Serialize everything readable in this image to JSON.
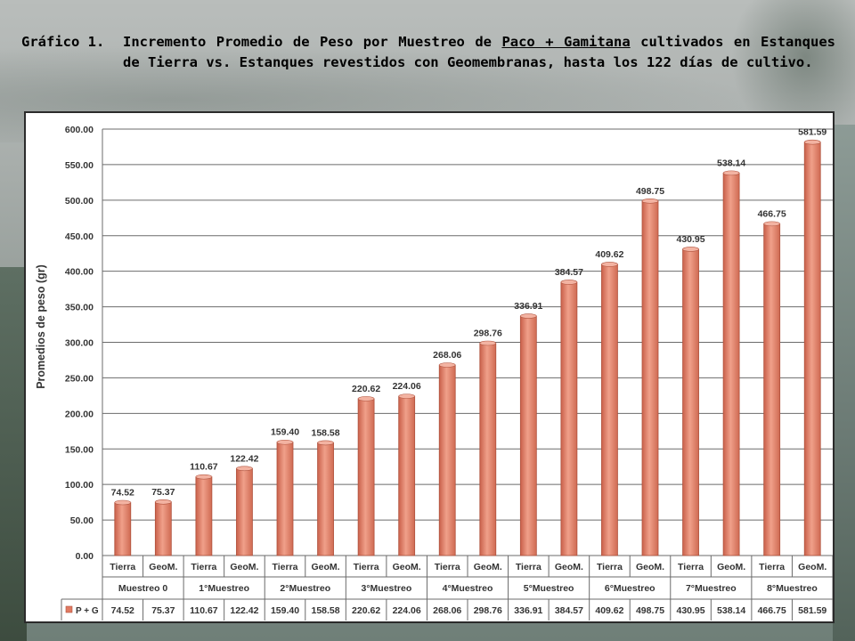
{
  "title": {
    "label": "Gráfico 1.",
    "text_pre": "Incremento Promedio de Peso por Muestreo de ",
    "text_underlined": "Paco + Gamitana",
    "text_post": " cultivados en Estanques de Tierra vs. Estanques revestidos con Geomembranas, hasta los 122 días de cultivo."
  },
  "chart_data": {
    "type": "bar",
    "ylabel": "Promedios de peso (gr)",
    "ylim": [
      0,
      600
    ],
    "ytick_step": 50,
    "grid": true,
    "bar_color": "#e07a62",
    "series": [
      {
        "name": "P + G",
        "values": [
          74.52,
          75.37,
          110.67,
          122.42,
          159.4,
          158.58,
          220.62,
          224.06,
          268.06,
          298.76,
          336.91,
          384.57,
          409.62,
          498.75,
          430.95,
          538.14,
          466.75,
          581.59
        ],
        "labels": [
          "74.52",
          "75.37",
          "110.67",
          "122.42",
          "159.40",
          "158.58",
          "220.62",
          "224.06",
          "268.06",
          "298.76",
          "336.91",
          "384.57",
          "409.62",
          "498.75",
          "430.95",
          "538.14",
          "466.75",
          "581.59"
        ]
      }
    ],
    "categories": [
      "Tierra",
      "GeoM.",
      "Tierra",
      "GeoM.",
      "Tierra",
      "GeoM.",
      "Tierra",
      "GeoM.",
      "Tierra",
      "GeoM.",
      "Tierra",
      "GeoM.",
      "Tierra",
      "GeoM.",
      "Tierra",
      "GeoM.",
      "Tierra",
      "GeoM."
    ],
    "groups": [
      "Muestreo 0",
      "1°Muestreo",
      "2°Muestreo",
      "3°Muestreo",
      "4°Muestreo",
      "5°Muestreo",
      "6°Muestreo",
      "7°Muestreo",
      "8°Muestreo"
    ],
    "ytick_labels": [
      "0.00",
      "50.00",
      "100.00",
      "150.00",
      "200.00",
      "250.00",
      "300.00",
      "350.00",
      "400.00",
      "450.00",
      "500.00",
      "550.00",
      "600.00"
    ]
  }
}
